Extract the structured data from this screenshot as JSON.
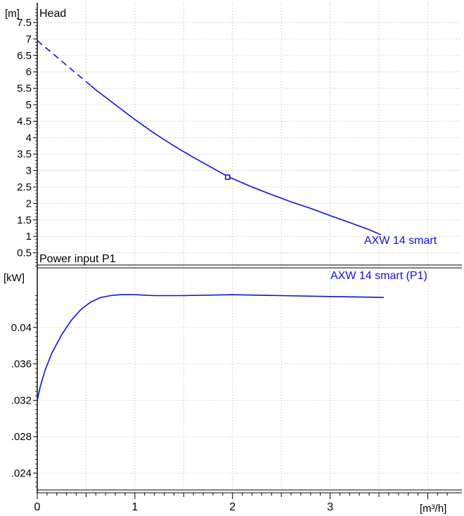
{
  "chart_data": {
    "type": "line",
    "x_axis": {
      "label": "[m³/h]",
      "ticks": [
        0,
        1,
        2,
        3
      ],
      "range": [
        0,
        4.35
      ]
    },
    "panels": [
      {
        "title": "Head",
        "ylabel": "[m]",
        "yticks": [
          "0.5",
          "1",
          "1.5",
          "2",
          "2.5",
          "3",
          "3.5",
          "4",
          "4.5",
          "5",
          "5.5",
          "6",
          "6.5",
          "7",
          "7.5"
        ],
        "ytick_values": [
          0.5,
          1,
          1.5,
          2,
          2.5,
          3,
          3.5,
          4,
          4.5,
          5,
          5.5,
          6,
          6.5,
          7,
          7.5
        ],
        "ylim": [
          0,
          8
        ],
        "grid": true,
        "series": [
          {
            "name": "AXW 14 smart",
            "color": "#1010dd",
            "x": [
              0,
              0.1,
              0.2,
              0.3,
              0.4,
              0.5,
              0.55,
              0.6,
              0.8,
              1.0,
              1.2,
              1.4,
              1.6,
              1.8,
              1.95,
              2.2,
              2.4,
              2.6,
              2.8,
              3.0,
              3.2,
              3.4,
              3.52
            ],
            "y": [
              6.95,
              6.7,
              6.45,
              6.2,
              5.95,
              5.7,
              5.58,
              5.45,
              5.0,
              4.55,
              4.13,
              3.75,
              3.4,
              3.07,
              2.82,
              2.5,
              2.27,
              2.05,
              1.85,
              1.63,
              1.42,
              1.2,
              1.05
            ],
            "dashed_until_x": 0.55
          }
        ],
        "marker": {
          "x": 1.95,
          "y": 2.8,
          "shape": "square"
        }
      },
      {
        "title": "Power input P1",
        "ylabel": "[kW]",
        "yticks": [
          ".024",
          ".028",
          ".032",
          ".036",
          "0.04"
        ],
        "ytick_values": [
          0.024,
          0.028,
          0.032,
          0.036,
          0.04
        ],
        "ylim": [
          0.0218,
          0.0441
        ],
        "grid": true,
        "series": [
          {
            "name": "AXW 14 smart (P1)",
            "color": "#1010dd",
            "x": [
              0,
              0.03,
              0.08,
              0.15,
              0.25,
              0.35,
              0.45,
              0.55,
              0.65,
              0.75,
              0.85,
              1.0,
              1.2,
              1.5,
              2.0,
              2.5,
              3.0,
              3.55
            ],
            "y": [
              0.032,
              0.0335,
              0.0353,
              0.0372,
              0.0392,
              0.0408,
              0.042,
              0.0428,
              0.0433,
              0.0435,
              0.0436,
              0.0436,
              0.0435,
              0.0435,
              0.0436,
              0.0435,
              0.0434,
              0.0433
            ]
          }
        ]
      }
    ]
  }
}
